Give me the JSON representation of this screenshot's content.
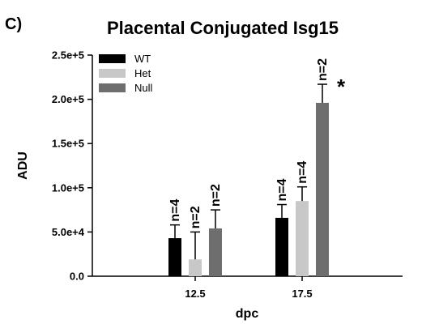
{
  "panel_label": "C)",
  "chart_data": {
    "type": "bar",
    "title": "Placental Conjugated Isg15",
    "xlabel": "dpc",
    "ylabel": "ADU",
    "categories": [
      "12.5",
      "17.5"
    ],
    "ylim": [
      0,
      250000
    ],
    "y_ticks": [
      0,
      50000,
      100000,
      150000,
      200000,
      250000
    ],
    "y_tick_labels": [
      "0.0",
      "5.0e+4",
      "1.0e+5",
      "1.5e+5",
      "2.0e+5",
      "2.5e+5"
    ],
    "legend_position": "top-left",
    "grid": false,
    "error_bars": "upper",
    "series": [
      {
        "name": "WT",
        "color": "#000000",
        "values": [
          43000,
          66000
        ],
        "errors": [
          15000,
          15000
        ],
        "n_labels": [
          "n=4",
          "n=4"
        ]
      },
      {
        "name": "Het",
        "color": "#c8c8c8",
        "values": [
          19000,
          85000
        ],
        "errors": [
          31000,
          16000
        ],
        "n_labels": [
          "n=2",
          "n=4"
        ]
      },
      {
        "name": "Null",
        "color": "#6e6e6e",
        "values": [
          54000,
          196000
        ],
        "errors": [
          21000,
          21000
        ],
        "n_labels": [
          "n=2",
          "n=2"
        ]
      }
    ],
    "annotations": [
      {
        "text": "*",
        "category": "17.5",
        "series": "Null"
      }
    ]
  }
}
